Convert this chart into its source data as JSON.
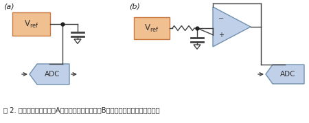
{
  "bg_color": "#ffffff",
  "label_a": "(a)",
  "label_b": "(b)",
  "vref_fill": "#f0c090",
  "vref_edge": "#c87840",
  "adc_fill": "#c0d0e8",
  "adc_edge": "#7090b0",
  "opamp_fill": "#c0d0e8",
  "opamp_edge": "#7090b0",
  "wire_color": "#404040",
  "dot_color": "#202020",
  "caption": "图 2. 电压基准通常需要（A）一只旁路电容，或（B）一只带缓冲放大器的电容。",
  "caption_fontsize": 7.2
}
